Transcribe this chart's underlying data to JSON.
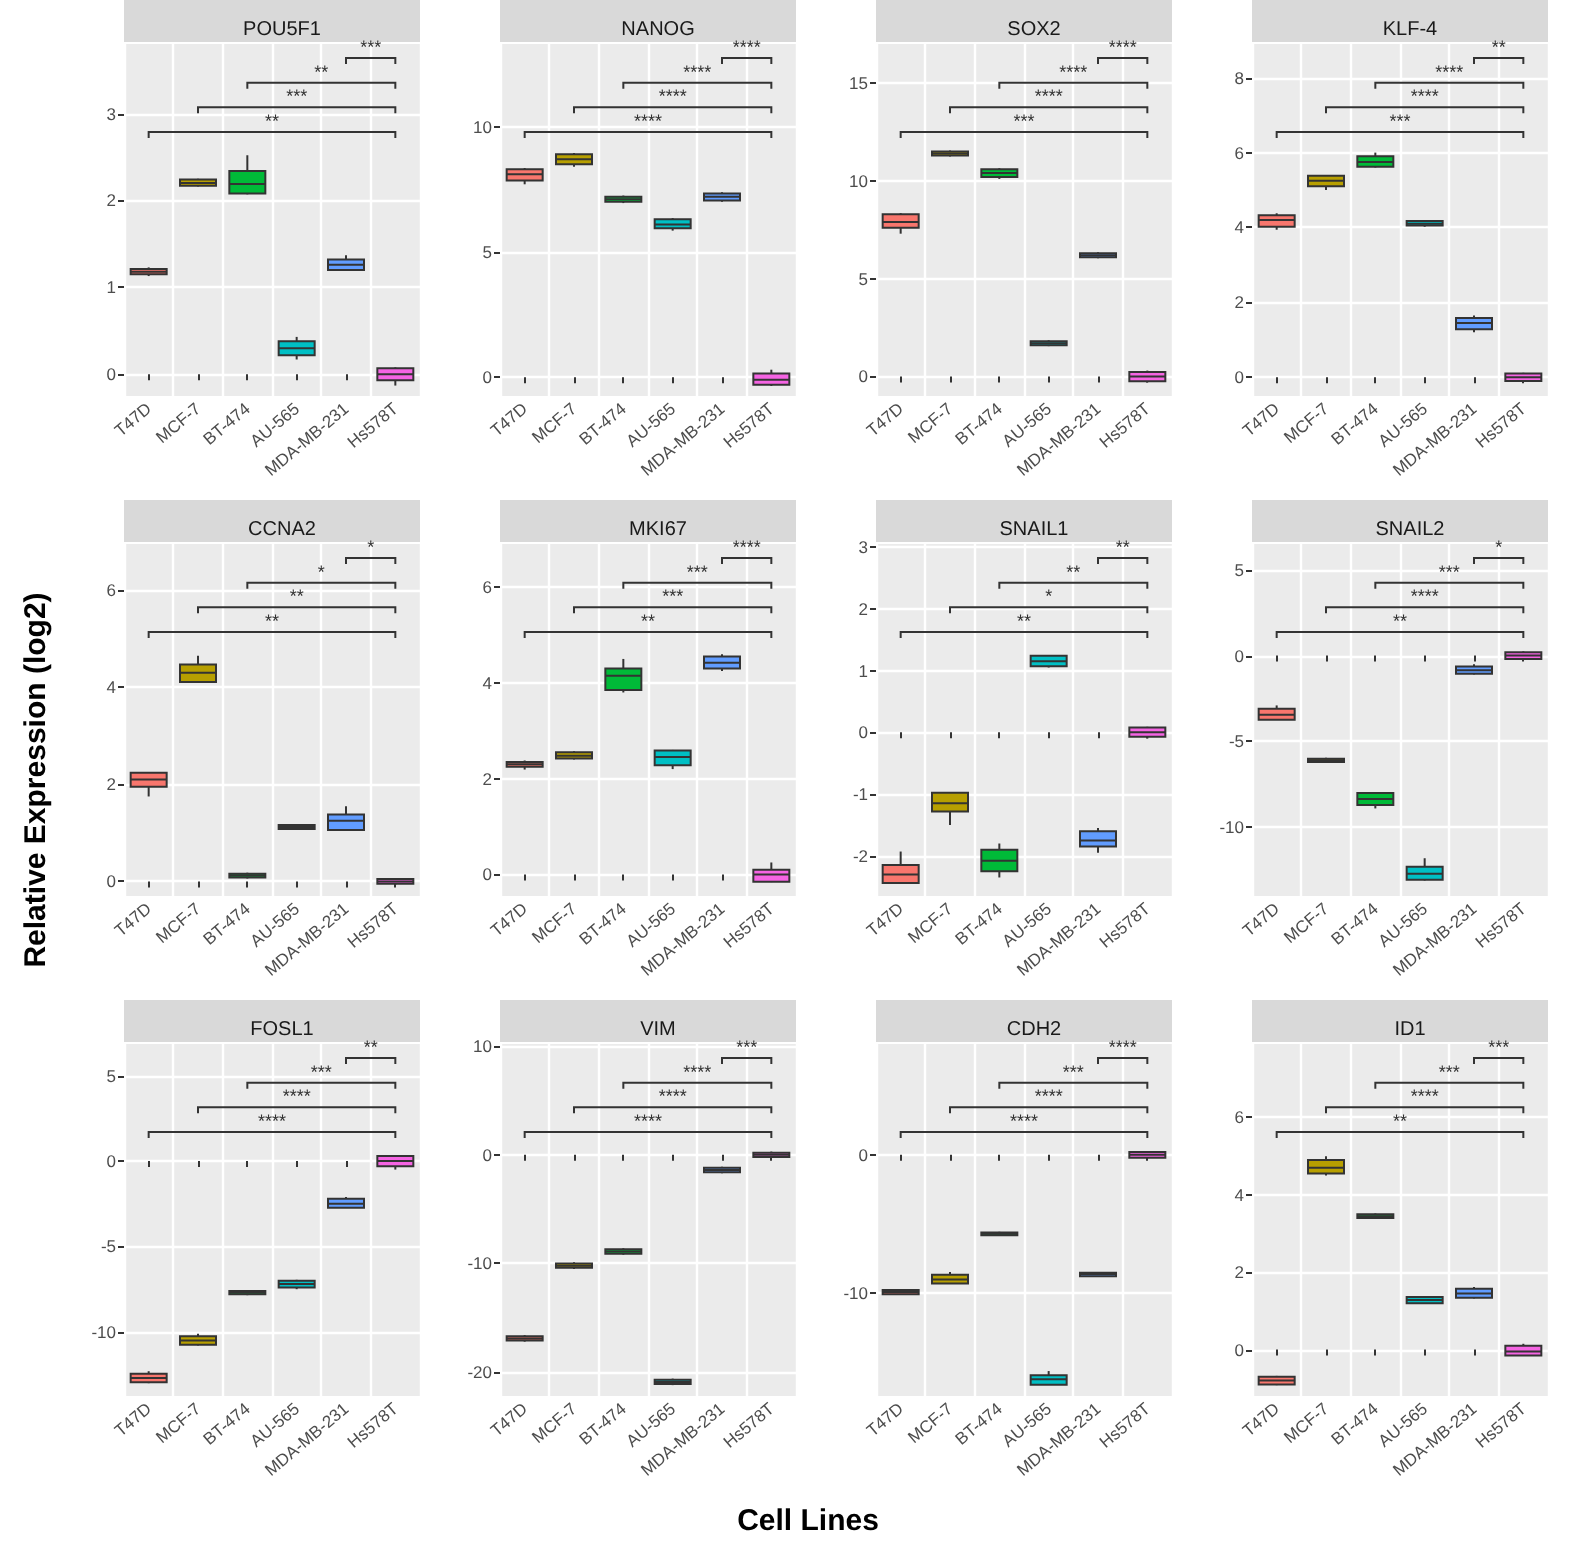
{
  "chart_data": [
    {
      "type": "box",
      "title": "POU5F1",
      "categories": [
        "T47D",
        "MCF-7",
        "BT-474",
        "AU-565",
        "MDA-MB-231",
        "Hs578T"
      ],
      "colors": [
        "#f8766d",
        "#b79f00",
        "#00ba38",
        "#00bfc4",
        "#619cff",
        "#f564e3"
      ],
      "boxes": [
        {
          "low": 1.13,
          "q1": 1.15,
          "median": 1.18,
          "q3": 1.21,
          "high": 1.23
        },
        {
          "low": 2.16,
          "q1": 2.17,
          "median": 2.2,
          "q3": 2.24,
          "high": 2.25
        },
        {
          "low": 2.07,
          "q1": 2.08,
          "median": 2.19,
          "q3": 2.34,
          "high": 2.52
        },
        {
          "low": 0.17,
          "q1": 0.22,
          "median": 0.3,
          "q3": 0.38,
          "high": 0.43
        },
        {
          "low": 1.19,
          "q1": 1.2,
          "median": 1.26,
          "q3": 1.32,
          "high": 1.37
        },
        {
          "low": -0.13,
          "q1": -0.07,
          "median": 0,
          "q3": 0.07,
          "high": 0.08
        }
      ],
      "ylim": [
        -0.25,
        3.8
      ],
      "yticks": [
        0,
        1,
        2,
        3
      ],
      "grid": true,
      "annotations": [
        "***",
        "**",
        "***",
        "**"
      ]
    },
    {
      "type": "box",
      "title": "NANOG",
      "categories": [
        "T47D",
        "MCF-7",
        "BT-474",
        "AU-565",
        "MDA-MB-231",
        "Hs578T"
      ],
      "colors": [
        "#f8766d",
        "#b79f00",
        "#00ba38",
        "#00bfc4",
        "#619cff",
        "#f564e3"
      ],
      "boxes": [
        {
          "low": 7.7,
          "q1": 7.85,
          "median": 8.1,
          "q3": 8.3,
          "high": 8.35
        },
        {
          "low": 8.4,
          "q1": 8.5,
          "median": 8.7,
          "q3": 8.9,
          "high": 8.95
        },
        {
          "low": 6.95,
          "q1": 7.0,
          "median": 7.1,
          "q3": 7.2,
          "high": 7.25
        },
        {
          "low": 5.85,
          "q1": 5.95,
          "median": 6.1,
          "q3": 6.3,
          "high": 6.35
        },
        {
          "low": 7.0,
          "q1": 7.05,
          "median": 7.2,
          "q3": 7.33,
          "high": 7.38
        },
        {
          "low": -0.35,
          "q1": -0.3,
          "median": -0.1,
          "q3": 0.15,
          "high": 0.3
        }
      ],
      "ylim": [
        -0.75,
        13.3
      ],
      "yticks": [
        0,
        5,
        10
      ],
      "grid": true,
      "annotations": [
        "****",
        "****",
        "****",
        "****"
      ]
    },
    {
      "type": "box",
      "title": "SOX2",
      "categories": [
        "T47D",
        "MCF-7",
        "BT-474",
        "AU-565",
        "MDA-MB-231",
        "Hs578T"
      ],
      "colors": [
        "#f8766d",
        "#b79f00",
        "#00ba38",
        "#00bfc4",
        "#619cff",
        "#f564e3"
      ],
      "boxes": [
        {
          "low": 7.3,
          "q1": 7.6,
          "median": 7.9,
          "q3": 8.3,
          "high": 8.35
        },
        {
          "low": 11.25,
          "q1": 11.3,
          "median": 11.4,
          "q3": 11.5,
          "high": 11.55
        },
        {
          "low": 10.1,
          "q1": 10.2,
          "median": 10.4,
          "q3": 10.6,
          "high": 10.65
        },
        {
          "low": 1.55,
          "q1": 1.6,
          "median": 1.7,
          "q3": 1.8,
          "high": 1.85
        },
        {
          "low": 6.05,
          "q1": 6.1,
          "median": 6.2,
          "q3": 6.3,
          "high": 6.35
        },
        {
          "low": -0.3,
          "q1": -0.25,
          "median": 0,
          "q3": 0.23,
          "high": 0.3
        }
      ],
      "ylim": [
        -1,
        17
      ],
      "yticks": [
        0,
        5,
        10,
        15
      ],
      "grid": true,
      "annotations": [
        "****",
        "****",
        "****",
        "***"
      ]
    },
    {
      "type": "box",
      "title": "KLF-4",
      "categories": [
        "T47D",
        "MCF-7",
        "BT-474",
        "AU-565",
        "MDA-MB-231",
        "Hs578T"
      ],
      "colors": [
        "#f8766d",
        "#b79f00",
        "#00ba38",
        "#00bfc4",
        "#619cff",
        "#f564e3"
      ],
      "boxes": [
        {
          "low": 3.94,
          "q1": 4.02,
          "median": 4.2,
          "q3": 4.33,
          "high": 4.38
        },
        {
          "low": 5.0,
          "q1": 5.1,
          "median": 5.25,
          "q3": 5.38,
          "high": 5.4
        },
        {
          "low": 5.6,
          "q1": 5.62,
          "median": 5.75,
          "q3": 5.9,
          "high": 6.0
        },
        {
          "low": 4.02,
          "q1": 4.05,
          "median": 4.1,
          "q3": 4.17,
          "high": 4.2
        },
        {
          "low": 1.2,
          "q1": 1.28,
          "median": 1.45,
          "q3": 1.58,
          "high": 1.65
        },
        {
          "low": -0.12,
          "q1": -0.1,
          "median": 0,
          "q3": 0.1,
          "high": 0.12
        }
      ],
      "ylim": [
        -0.5,
        8.9
      ],
      "yticks": [
        0,
        2,
        4,
        6,
        8
      ],
      "grid": true,
      "annotations": [
        "**",
        "****",
        "****",
        "***"
      ]
    },
    {
      "type": "box",
      "title": "CCNA2",
      "ylabel": "Relative Expression (log2)",
      "categories": [
        "T47D",
        "MCF-7",
        "BT-474",
        "AU-565",
        "MDA-MB-231",
        "Hs578T"
      ],
      "colors": [
        "#f8766d",
        "#b79f00",
        "#00ba38",
        "#00bfc4",
        "#619cff",
        "#f564e3"
      ],
      "boxes": [
        {
          "low": 1.75,
          "q1": 1.95,
          "median": 2.1,
          "q3": 2.24,
          "high": 2.25
        },
        {
          "low": 4.1,
          "q1": 4.11,
          "median": 4.3,
          "q3": 4.47,
          "high": 4.65
        },
        {
          "low": 0.06,
          "q1": 0.08,
          "median": 0.12,
          "q3": 0.16,
          "high": 0.18
        },
        {
          "low": 1.06,
          "q1": 1.08,
          "median": 1.12,
          "q3": 1.16,
          "high": 1.18
        },
        {
          "low": 1.05,
          "q1": 1.06,
          "median": 1.25,
          "q3": 1.38,
          "high": 1.55
        },
        {
          "low": -0.07,
          "q1": -0.05,
          "median": 0,
          "q3": 0.05,
          "high": 0.07
        }
      ],
      "ylim": [
        -0.3,
        6.95
      ],
      "yticks": [
        0,
        2,
        4,
        6
      ],
      "grid": true,
      "annotations": [
        "*",
        "*",
        "**",
        "**"
      ]
    },
    {
      "type": "box",
      "title": "MKI67",
      "categories": [
        "T47D",
        "MCF-7",
        "BT-474",
        "AU-565",
        "MDA-MB-231",
        "Hs578T"
      ],
      "colors": [
        "#f8766d",
        "#b79f00",
        "#00ba38",
        "#00bfc4",
        "#619cff",
        "#f564e3"
      ],
      "boxes": [
        {
          "low": 2.19,
          "q1": 2.25,
          "median": 2.3,
          "q3": 2.35,
          "high": 2.38
        },
        {
          "low": 2.4,
          "q1": 2.42,
          "median": 2.48,
          "q3": 2.55,
          "high": 2.57
        },
        {
          "low": 3.8,
          "q1": 3.85,
          "median": 4.15,
          "q3": 4.3,
          "high": 4.5
        },
        {
          "low": 2.2,
          "q1": 2.28,
          "median": 2.45,
          "q3": 2.59,
          "high": 2.6
        },
        {
          "low": 4.25,
          "q1": 4.3,
          "median": 4.42,
          "q3": 4.55,
          "high": 4.6
        },
        {
          "low": -0.16,
          "q1": -0.15,
          "median": 0,
          "q3": 0.1,
          "high": 0.25
        }
      ],
      "ylim": [
        -0.45,
        6.9
      ],
      "yticks": [
        0,
        2,
        4,
        6
      ],
      "grid": true,
      "annotations": [
        "****",
        "***",
        "***",
        "**"
      ]
    },
    {
      "type": "box",
      "title": "SNAIL1",
      "categories": [
        "T47D",
        "MCF-7",
        "BT-474",
        "AU-565",
        "MDA-MB-231",
        "Hs578T"
      ],
      "colors": [
        "#f8766d",
        "#b79f00",
        "#00ba38",
        "#00bfc4",
        "#619cff",
        "#f564e3"
      ],
      "boxes": [
        {
          "low": -2.45,
          "q1": -2.44,
          "median": -2.3,
          "q3": -2.15,
          "high": -1.93
        },
        {
          "low": -1.5,
          "q1": -1.28,
          "median": -1.15,
          "q3": -0.98,
          "high": -0.97
        },
        {
          "low": -2.35,
          "q1": -2.25,
          "median": -2.08,
          "q3": -1.9,
          "high": -1.8
        },
        {
          "low": 1.05,
          "q1": 1.07,
          "median": 1.15,
          "q3": 1.24,
          "high": 1.25
        },
        {
          "low": -1.95,
          "q1": -1.85,
          "median": -1.75,
          "q3": -1.6,
          "high": -1.55
        },
        {
          "low": -0.1,
          "q1": -0.07,
          "median": 0,
          "q3": 0.08,
          "high": 0.09
        }
      ],
      "ylim": [
        -2.65,
        3.05
      ],
      "yticks": [
        -2,
        -1,
        0,
        1,
        2,
        3
      ],
      "grid": true,
      "annotations": [
        "**",
        "**",
        "*",
        "**"
      ]
    },
    {
      "type": "box",
      "title": "SNAIL2",
      "categories": [
        "T47D",
        "MCF-7",
        "BT-474",
        "AU-565",
        "MDA-MB-231",
        "Hs578T"
      ],
      "colors": [
        "#f8766d",
        "#b79f00",
        "#00ba38",
        "#00bfc4",
        "#619cff",
        "#f564e3"
      ],
      "boxes": [
        {
          "low": -3.75,
          "q1": -3.74,
          "median": -3.45,
          "q3": -3.1,
          "high": -2.9
        },
        {
          "low": -6.25,
          "q1": -6.2,
          "median": -6.1,
          "q3": -6.0,
          "high": -5.95
        },
        {
          "low": -8.9,
          "q1": -8.7,
          "median": -8.35,
          "q3": -8.0,
          "high": -7.95
        },
        {
          "low": -13.1,
          "q1": -13.05,
          "median": -12.7,
          "q3": -12.3,
          "high": -11.8
        },
        {
          "low": -1.1,
          "q1": -1.05,
          "median": -0.85,
          "q3": -0.63,
          "high": -0.5
        },
        {
          "low": -0.25,
          "q1": -0.2,
          "median": 0,
          "q3": 0.2,
          "high": 0.25
        }
      ],
      "ylim": [
        -14,
        6.5
      ],
      "yticks": [
        -10,
        -5,
        0,
        5
      ],
      "grid": true,
      "annotations": [
        "*",
        "***",
        "****",
        "**"
      ]
    },
    {
      "type": "box",
      "title": "FOSL1",
      "categories": [
        "T47D",
        "MCF-7",
        "BT-474",
        "AU-565",
        "MDA-MB-231",
        "Hs578T"
      ],
      "colors": [
        "#f8766d",
        "#b79f00",
        "#00ba38",
        "#00bfc4",
        "#619cff",
        "#f564e3"
      ],
      "boxes": [
        {
          "low": -13.0,
          "q1": -12.95,
          "median": -12.7,
          "q3": -12.45,
          "high": -12.3
        },
        {
          "low": -10.8,
          "q1": -10.75,
          "median": -10.5,
          "q3": -10.25,
          "high": -10.1
        },
        {
          "low": -7.85,
          "q1": -7.8,
          "median": -7.7,
          "q3": -7.6,
          "high": -7.55
        },
        {
          "low": -7.5,
          "q1": -7.4,
          "median": -7.2,
          "q3": -7.0,
          "high": -6.95
        },
        {
          "low": -2.75,
          "q1": -2.74,
          "median": -2.5,
          "q3": -2.2,
          "high": -2.1
        },
        {
          "low": -0.5,
          "q1": -0.3,
          "median": 0,
          "q3": 0.3,
          "high": 0.35
        }
      ],
      "ylim": [
        -13.75,
        6.85
      ],
      "yticks": [
        -10,
        -5,
        0,
        5
      ],
      "grid": true,
      "annotations": [
        "**",
        "***",
        "****",
        "****"
      ]
    },
    {
      "type": "box",
      "title": "VIM",
      "xlabel": "Cell Lines",
      "categories": [
        "T47D",
        "MCF-7",
        "BT-474",
        "AU-565",
        "MDA-MB-231",
        "Hs578T"
      ],
      "colors": [
        "#f8766d",
        "#b79f00",
        "#00ba38",
        "#00bfc4",
        "#619cff",
        "#f564e3"
      ],
      "boxes": [
        {
          "low": -17.2,
          "q1": -17.1,
          "median": -16.9,
          "q3": -16.7,
          "high": -16.6
        },
        {
          "low": -10.5,
          "q1": -10.4,
          "median": -10.2,
          "q3": -10.0,
          "high": -9.9
        },
        {
          "low": -9.2,
          "q1": -9.1,
          "median": -8.9,
          "q3": -8.7,
          "high": -8.6
        },
        {
          "low": -21.2,
          "q1": -21.1,
          "median": -20.9,
          "q3": -20.7,
          "high": -20.6
        },
        {
          "low": -1.7,
          "q1": -1.6,
          "median": -1.4,
          "q3": -1.2,
          "high": -1.1
        },
        {
          "low": -0.3,
          "q1": -0.2,
          "median": 0,
          "q3": 0.2,
          "high": 0.3
        }
      ],
      "ylim": [
        -22.2,
        10.2
      ],
      "yticks": [
        -20,
        -10,
        0,
        10
      ],
      "grid": true,
      "annotations": [
        "***",
        "****",
        "****",
        "****"
      ]
    },
    {
      "type": "box",
      "title": "CDH2",
      "categories": [
        "T47D",
        "MCF-7",
        "BT-474",
        "AU-565",
        "MDA-MB-231",
        "Hs578T"
      ],
      "colors": [
        "#f8766d",
        "#b79f00",
        "#00ba38",
        "#00bfc4",
        "#619cff",
        "#f564e3"
      ],
      "boxes": [
        {
          "low": -10.1,
          "q1": -10.05,
          "median": -9.9,
          "q3": -9.75,
          "high": -9.7
        },
        {
          "low": -9.3,
          "q1": -9.29,
          "median": -9.0,
          "q3": -8.65,
          "high": -8.45
        },
        {
          "low": -5.85,
          "q1": -5.8,
          "median": -5.7,
          "q3": -5.6,
          "high": -5.55
        },
        {
          "low": -16.6,
          "q1": -16.59,
          "median": -16.2,
          "q3": -15.9,
          "high": -15.6
        },
        {
          "low": -8.8,
          "q1": -8.75,
          "median": -8.6,
          "q3": -8.5,
          "high": -8.45
        },
        {
          "low": -0.25,
          "q1": -0.2,
          "median": 0,
          "q3": 0.2,
          "high": 0.25
        }
      ],
      "ylim": [
        -17.4,
        8
      ],
      "yticks": [
        -10,
        0
      ],
      "grid": true,
      "annotations": [
        "****",
        "***",
        "****",
        "****"
      ]
    },
    {
      "type": "box",
      "title": "ID1",
      "categories": [
        "T47D",
        "MCF-7",
        "BT-474",
        "AU-565",
        "MDA-MB-231",
        "Hs578T"
      ],
      "colors": [
        "#f8766d",
        "#b79f00",
        "#00ba38",
        "#00bfc4",
        "#619cff",
        "#f564e3"
      ],
      "boxes": [
        {
          "low": -0.92,
          "q1": -0.9,
          "median": -0.8,
          "q3": -0.7,
          "high": -0.68
        },
        {
          "low": 4.5,
          "q1": 4.55,
          "median": 4.7,
          "q3": 4.9,
          "high": 5.0
        },
        {
          "low": 3.38,
          "q1": 3.4,
          "median": 3.45,
          "q3": 3.5,
          "high": 3.52
        },
        {
          "low": 1.18,
          "q1": 1.2,
          "median": 1.28,
          "q3": 1.36,
          "high": 1.38
        },
        {
          "low": 1.32,
          "q1": 1.34,
          "median": 1.45,
          "q3": 1.57,
          "high": 1.62
        },
        {
          "low": -0.16,
          "q1": -0.15,
          "median": -0.05,
          "q3": 0.1,
          "high": 0.15
        }
      ],
      "ylim": [
        -1.2,
        7.9
      ],
      "yticks": [
        0,
        2,
        4,
        6
      ],
      "grid": true,
      "annotations": [
        "***",
        "***",
        "****",
        "**"
      ]
    }
  ]
}
